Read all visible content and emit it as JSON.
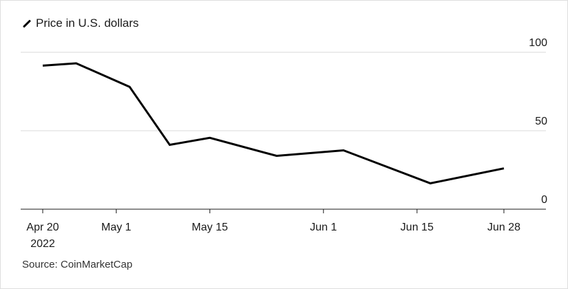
{
  "chart_data": {
    "type": "line",
    "legend": {
      "label": "Price in U.S. dollars",
      "placement": "top-left"
    },
    "series": [
      {
        "name": "Price in U.S. dollars",
        "color": "#000000",
        "points": [
          {
            "date": "2022-04-20",
            "value": 91.5
          },
          {
            "date": "2022-04-25",
            "value": 93
          },
          {
            "date": "2022-05-03",
            "value": 78
          },
          {
            "date": "2022-05-09",
            "value": 41
          },
          {
            "date": "2022-05-15",
            "value": 45.5
          },
          {
            "date": "2022-05-25",
            "value": 34
          },
          {
            "date": "2022-06-04",
            "value": 37.5
          },
          {
            "date": "2022-06-17",
            "value": 16.5
          },
          {
            "date": "2022-06-28",
            "value": 26
          }
        ]
      }
    ],
    "x_ticks": [
      {
        "date": "2022-04-20",
        "label": "Apr 20",
        "sublabel": "2022"
      },
      {
        "date": "2022-05-01",
        "label": "May 1",
        "sublabel": ""
      },
      {
        "date": "2022-05-15",
        "label": "May 15",
        "sublabel": ""
      },
      {
        "date": "2022-06-01",
        "label": "Jun 1",
        "sublabel": ""
      },
      {
        "date": "2022-06-15",
        "label": "Jun 15",
        "sublabel": ""
      },
      {
        "date": "2022-06-28",
        "label": "Jun 28",
        "sublabel": ""
      }
    ],
    "y_ticks": [
      0,
      50,
      100
    ],
    "ylim": [
      0,
      100
    ],
    "y_axis_side": "right",
    "grid": true,
    "source": "Source: CoinMarketCap"
  }
}
